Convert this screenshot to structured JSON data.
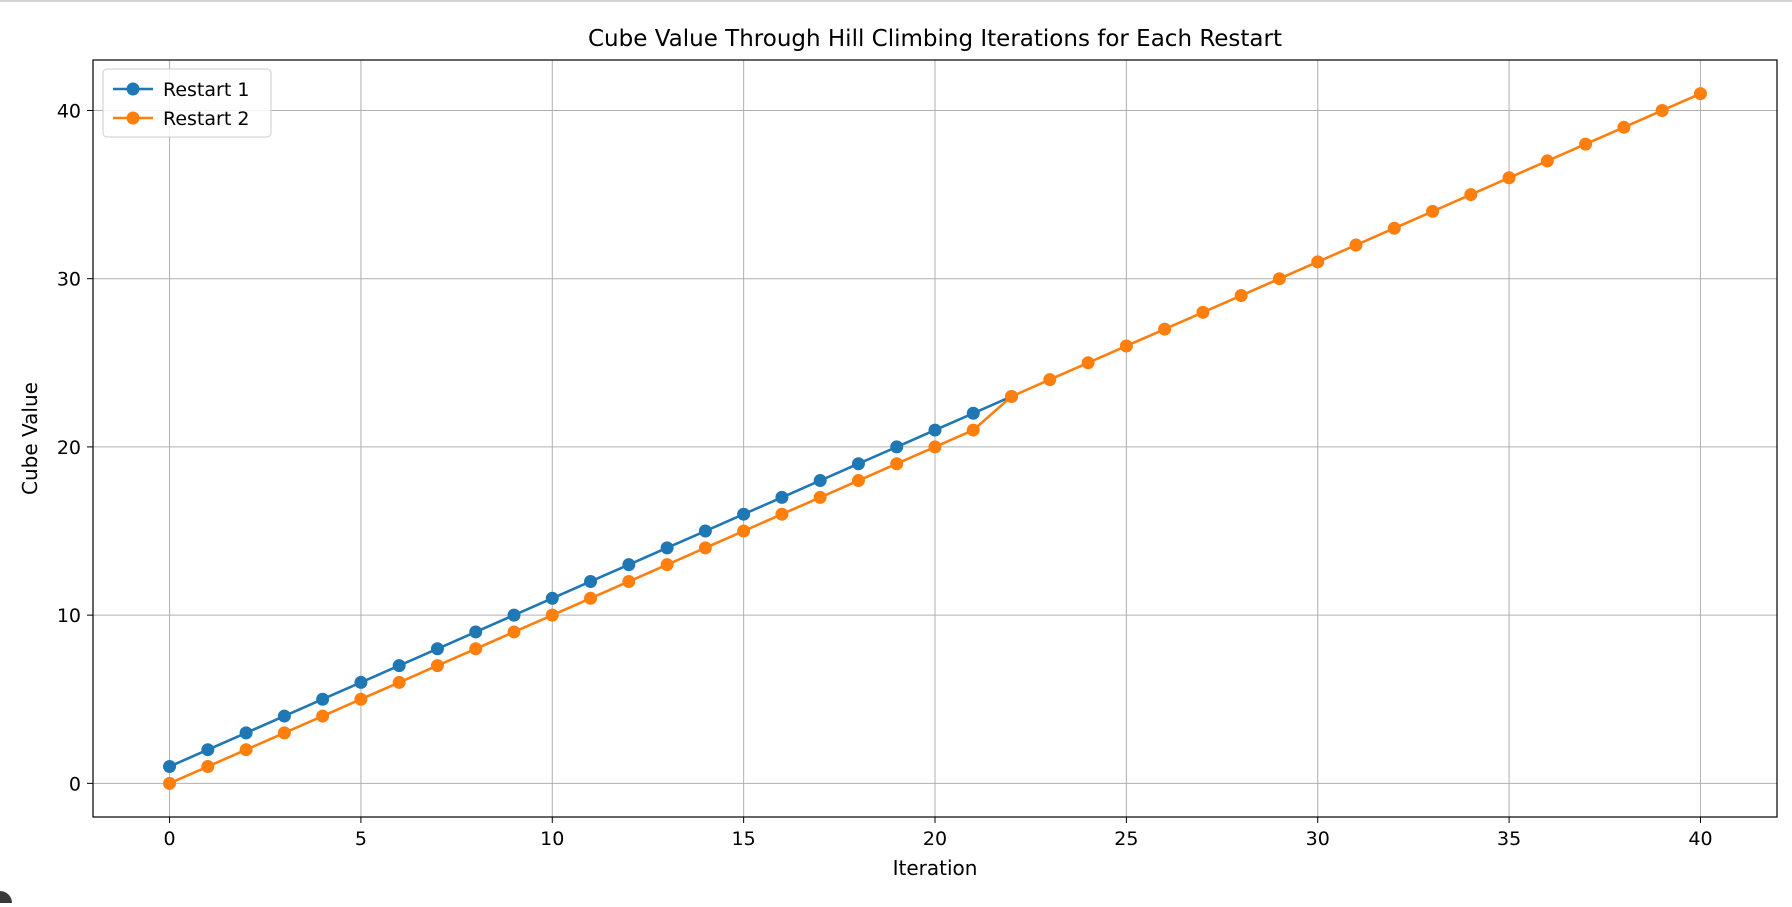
{
  "chart_data": {
    "type": "line",
    "title": "Cube Value Through Hill Climbing Iterations for Each Restart",
    "xlabel": "Iteration",
    "ylabel": "Cube Value",
    "xlim": [
      -2,
      42
    ],
    "ylim": [
      -2,
      43
    ],
    "xticks": [
      0,
      5,
      10,
      15,
      20,
      25,
      30,
      35,
      40
    ],
    "yticks": [
      0,
      10,
      20,
      30,
      40
    ],
    "grid": true,
    "legend_position": "top-left",
    "series": [
      {
        "name": "Restart 1",
        "color": "#1f77b4",
        "marker": "circle",
        "x": [
          0,
          1,
          2,
          3,
          4,
          5,
          6,
          7,
          8,
          9,
          10,
          11,
          12,
          13,
          14,
          15,
          16,
          17,
          18,
          19,
          20,
          21,
          22
        ],
        "y": [
          1,
          2,
          3,
          4,
          5,
          6,
          7,
          8,
          9,
          10,
          11,
          12,
          13,
          14,
          15,
          16,
          17,
          18,
          19,
          20,
          21,
          22,
          23
        ]
      },
      {
        "name": "Restart 2",
        "color": "#ff7f0e",
        "marker": "circle",
        "x": [
          0,
          1,
          2,
          3,
          4,
          5,
          6,
          7,
          8,
          9,
          10,
          11,
          12,
          13,
          14,
          15,
          16,
          17,
          18,
          19,
          20,
          21,
          22,
          23,
          24,
          25,
          26,
          27,
          28,
          29,
          30,
          31,
          32,
          33,
          34,
          35,
          36,
          37,
          38,
          39,
          40
        ],
        "y": [
          0,
          1,
          2,
          3,
          4,
          5,
          6,
          7,
          8,
          9,
          10,
          11,
          12,
          13,
          14,
          15,
          16,
          17,
          18,
          19,
          20,
          21,
          23,
          24,
          25,
          26,
          27,
          28,
          29,
          30,
          31,
          32,
          33,
          34,
          35,
          36,
          37,
          38,
          39,
          40,
          41
        ]
      }
    ]
  }
}
